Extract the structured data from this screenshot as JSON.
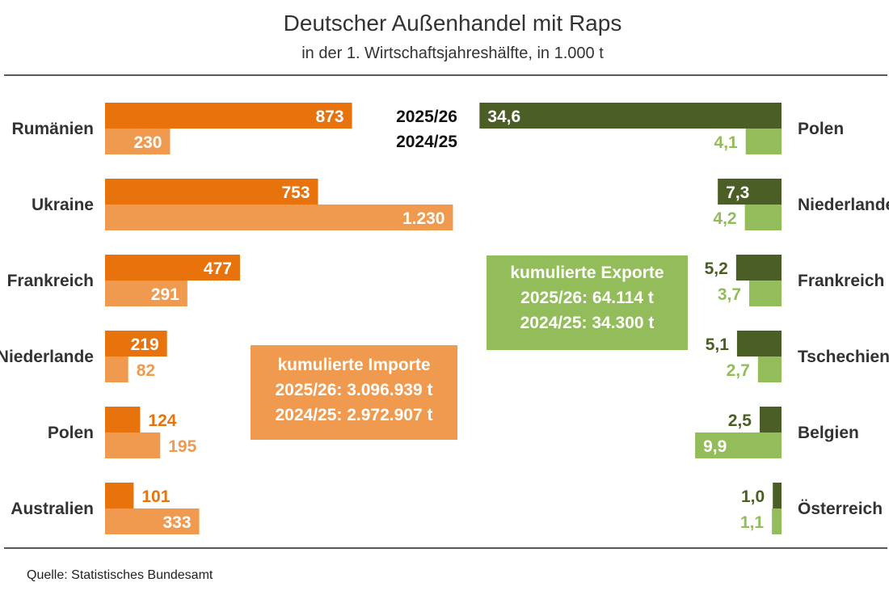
{
  "header": {
    "title": "Deutscher Außenhandel mit Raps",
    "subtitle": "in der 1. Wirtschaftsjahreshälfte, in 1.000 t"
  },
  "legend": {
    "current": "2025/26",
    "previous": "2024/25"
  },
  "import_box": {
    "title": "kumulierte Importe",
    "line1": "2025/26: 3.096.939 t",
    "line2": "2024/25: 2.972.907 t"
  },
  "export_box": {
    "title": "kumulierte Exporte",
    "line1": "2025/26: 64.114 t",
    "line2": "2024/25: 34.300 t"
  },
  "source": "Quelle:  Statistisches Bundesamt",
  "colors": {
    "import_current": "#e8720c",
    "import_previous": "#ef9a4e",
    "export_current": "#4a5e25",
    "export_previous": "#93bc5a"
  },
  "chart_data": [
    {
      "type": "bar",
      "orientation": "horizontal",
      "side": "left",
      "name": "Importe",
      "categories": [
        "Rumänien",
        "Ukraine",
        "Frankreich",
        "Niederlande",
        "Polen",
        "Australien"
      ],
      "series": [
        {
          "name": "2025/26",
          "values": [
            873,
            753,
            477,
            219,
            124,
            101
          ],
          "labels": [
            "873",
            "753",
            "477",
            "219",
            "124",
            "101"
          ]
        },
        {
          "name": "2024/25",
          "values": [
            230,
            1230,
            291,
            82,
            195,
            333
          ],
          "labels": [
            "230",
            "1.230",
            "291",
            "82",
            "195",
            "333"
          ]
        }
      ]
    },
    {
      "type": "bar",
      "orientation": "horizontal",
      "side": "right",
      "name": "Exporte",
      "categories": [
        "Polen",
        "Niederlande",
        "Frankreich",
        "Tschechien",
        "Belgien",
        "Österreich"
      ],
      "series": [
        {
          "name": "2025/26",
          "values": [
            34.6,
            7.3,
            5.2,
            5.1,
            2.5,
            1.0
          ],
          "labels": [
            "34,6",
            "7,3",
            "5,2",
            "5,1",
            "2,5",
            "1,0"
          ]
        },
        {
          "name": "2024/25",
          "values": [
            4.1,
            4.2,
            3.7,
            2.7,
            9.9,
            1.1
          ],
          "labels": [
            "4,1",
            "4,2",
            "3,7",
            "2,7",
            "9,9",
            "1,1"
          ]
        }
      ]
    }
  ]
}
